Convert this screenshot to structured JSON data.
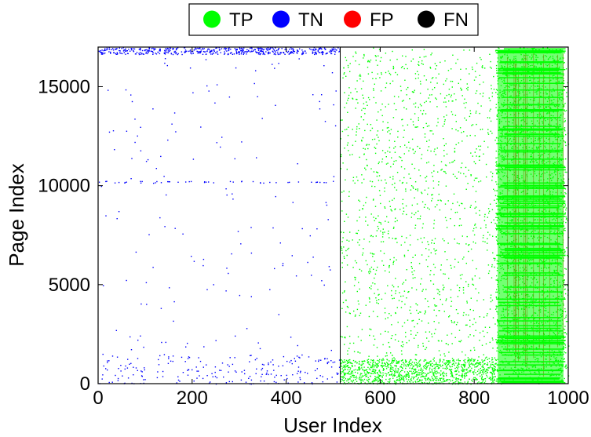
{
  "chart_data": {
    "type": "scatter",
    "title": "",
    "xlabel": "User Index",
    "ylabel": "Page Index",
    "xlim": [
      0,
      1000
    ],
    "ylim": [
      0,
      17000
    ],
    "xticks": [
      0,
      200,
      400,
      600,
      800,
      1000
    ],
    "yticks": [
      0,
      5000,
      10000,
      15000
    ],
    "divider_x": 515,
    "legend": {
      "placement": "top-center",
      "entries": [
        {
          "label": "TP",
          "color": "#00ff00"
        },
        {
          "label": "TN",
          "color": "#0000ff"
        },
        {
          "label": "FP",
          "color": "#ff0000"
        },
        {
          "label": "FN",
          "color": "#000000"
        }
      ]
    },
    "series": [
      {
        "name": "TN",
        "color": "#0000ff",
        "regions": [
          {
            "x": [
              0,
              515
            ],
            "y": [
              16650,
              17000
            ],
            "density": "dense"
          },
          {
            "x": [
              0,
              515
            ],
            "y": [
              10150,
              10250
            ],
            "density": "medium"
          },
          {
            "x": [
              0,
              515
            ],
            "y": [
              0,
              1500
            ],
            "density": "sparse"
          },
          {
            "x": [
              0,
              515
            ],
            "y": [
              0,
              17000
            ],
            "density": "very sparse"
          }
        ]
      },
      {
        "name": "TP",
        "color": "#00ff00",
        "regions": [
          {
            "x": [
              845,
              995
            ],
            "y": [
              0,
              17000
            ],
            "density": "dense"
          },
          {
            "x": [
              515,
              845
            ],
            "y": [
              0,
              1250
            ],
            "density": "dense"
          },
          {
            "x": [
              515,
              845
            ],
            "y": [
              1250,
              17000
            ],
            "density": "sparse"
          },
          {
            "x": [
              995,
              1000
            ],
            "y": [
              0,
              17000
            ],
            "density": "sparse"
          }
        ]
      },
      {
        "name": "FP",
        "color": "#ff0000",
        "regions": [
          {
            "x": [
              845,
              995
            ],
            "y": [
              0,
              17000
            ],
            "density": "sparse vertical streaks"
          }
        ]
      },
      {
        "name": "FN",
        "color": "#000000",
        "regions": []
      }
    ]
  }
}
